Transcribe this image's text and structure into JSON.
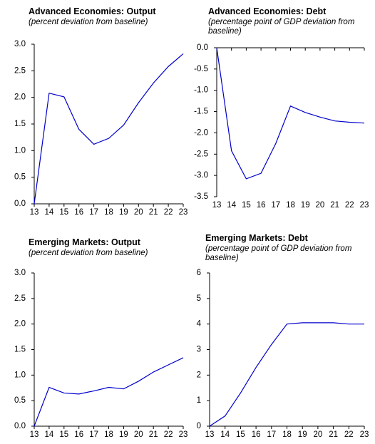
{
  "chart_data": [
    {
      "type": "line",
      "title": "Advanced Economies: Output",
      "subtitle": "(percent deviation from baseline)",
      "categories": [
        "13",
        "14",
        "15",
        "16",
        "17",
        "18",
        "19",
        "20",
        "21",
        "22",
        "23"
      ],
      "values": [
        0,
        2.08,
        2.01,
        1.4,
        1.12,
        1.23,
        1.48,
        1.9,
        2.27,
        2.58,
        2.82
      ],
      "color": "#0000cc",
      "ylim": [
        0,
        3
      ],
      "yticks": [
        {
          "value": 0,
          "label": "0.0"
        },
        0.5,
        {
          "value": 1,
          "label": "1.0"
        },
        1.5,
        {
          "value": 2,
          "label": "2.0"
        },
        2.5,
        {
          "value": 3,
          "label": "3.0"
        }
      ]
    },
    {
      "type": "line",
      "title": "Advanced Economies: Debt",
      "subtitle": "(percentage point of GDP  deviation from baseline)",
      "categories": [
        "13",
        "14",
        "15",
        "16",
        "17",
        "18",
        "19",
        "20",
        "21",
        "22",
        "23"
      ],
      "values": [
        0,
        -2.42,
        -3.08,
        -2.95,
        -2.25,
        -1.37,
        -1.52,
        -1.63,
        -1.72,
        -1.75,
        -1.77
      ],
      "color": "#0000cc",
      "ylim": [
        -3.5,
        0
      ],
      "yticks": [
        {
          "value": 0,
          "label": "0.0"
        },
        -0.5,
        {
          "value": -1,
          "label": "-1.0"
        },
        -1.5,
        {
          "value": -2,
          "label": "-2.0"
        },
        -2.5,
        {
          "value": -3,
          "label": "-3.0"
        },
        -3.5
      ]
    },
    {
      "type": "line",
      "title": "Emerging Markets: Output",
      "subtitle": "(percent deviation from baseline)",
      "categories": [
        "13",
        "14",
        "15",
        "16",
        "17",
        "18",
        "19",
        "20",
        "21",
        "22",
        "23"
      ],
      "values": [
        0,
        0.76,
        0.65,
        0.63,
        0.69,
        0.76,
        0.73,
        0.88,
        1.06,
        1.2,
        1.34
      ],
      "color": "#0000cc",
      "ylim": [
        0,
        3
      ],
      "yticks": [
        {
          "value": 0,
          "label": "0.0"
        },
        0.5,
        {
          "value": 1,
          "label": "1.0"
        },
        1.5,
        {
          "value": 2,
          "label": "2.0"
        },
        2.5,
        {
          "value": 3,
          "label": "3.0"
        }
      ]
    },
    {
      "type": "line",
      "title": "Emerging Markets: Debt",
      "subtitle": "(percentage point of GDP  deviation from baseline)",
      "categories": [
        "13",
        "14",
        "15",
        "16",
        "17",
        "18",
        "19",
        "20",
        "21",
        "22",
        "23"
      ],
      "values": [
        0,
        0.4,
        1.3,
        2.3,
        3.2,
        4.0,
        4.05,
        4.05,
        4.05,
        4.0,
        4.0
      ],
      "color": "#0000cc",
      "ylim": [
        0,
        6
      ],
      "yticks": [
        0,
        1,
        2,
        3,
        4,
        5,
        6
      ]
    }
  ]
}
